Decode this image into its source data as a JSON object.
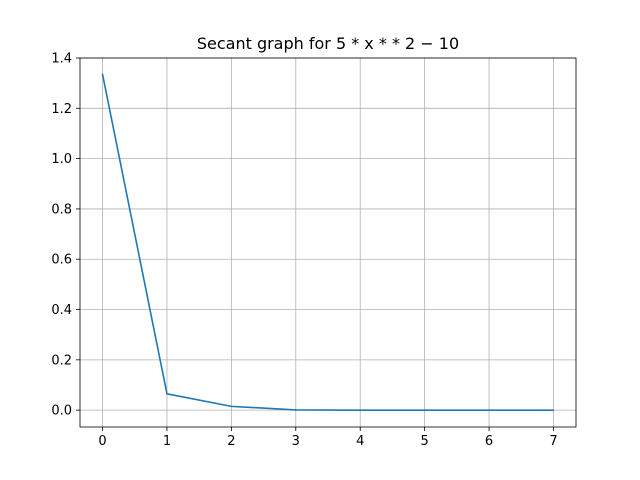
{
  "chart_data": {
    "type": "line",
    "title": "Secant graph for 5 * x * * 2 − 10",
    "xlabel": "",
    "ylabel": "",
    "x": [
      0,
      1,
      2,
      3,
      4,
      5,
      6,
      7
    ],
    "series": [
      {
        "values": [
          1.335,
          0.065,
          0.015,
          0.001,
          0.0,
          0.0,
          0.0,
          0.0
        ],
        "color": "#1f77b4"
      }
    ],
    "xlim": [
      -0.35,
      7.35
    ],
    "ylim": [
      -0.067,
      1.4
    ],
    "xticks": [
      0,
      1,
      2,
      3,
      4,
      5,
      6,
      7
    ],
    "xtick_labels": [
      "0",
      "1",
      "2",
      "3",
      "4",
      "5",
      "6",
      "7"
    ],
    "yticks": [
      0.0,
      0.2,
      0.4,
      0.6,
      0.8,
      1.0,
      1.2,
      1.4
    ],
    "ytick_labels": [
      "0.0",
      "0.2",
      "0.4",
      "0.6",
      "0.8",
      "1.0",
      "1.2",
      "1.4"
    ],
    "grid": true,
    "legend": "none"
  }
}
